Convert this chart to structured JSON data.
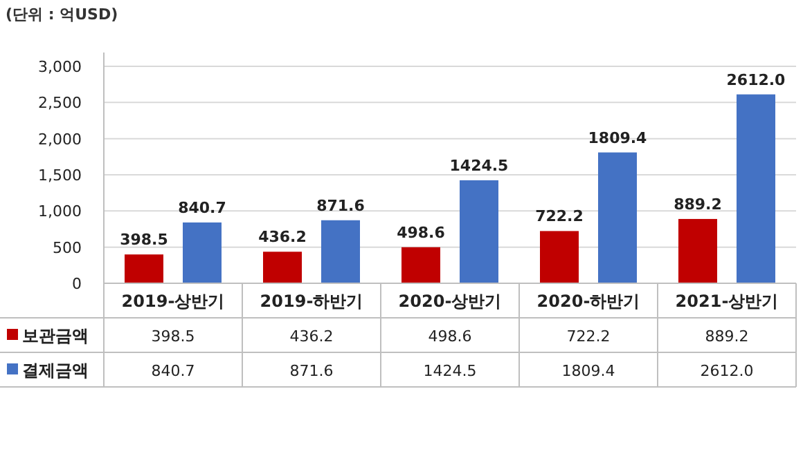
{
  "chart_data": {
    "type": "bar",
    "ylabel": "(단위 : 억USD)",
    "categories": [
      "2019-상반기",
      "2019-하반기",
      "2020-상반기",
      "2020-하반기",
      "2021-상반기"
    ],
    "series": [
      {
        "name": "보관금액",
        "color": "#c00000",
        "values": [
          398.5,
          436.2,
          498.6,
          722.2,
          889.2
        ],
        "value_labels": [
          "398.5",
          "436.2",
          "498.6",
          "722.2",
          "889.2"
        ]
      },
      {
        "name": "결제금액",
        "color": "#4472c4",
        "values": [
          840.7,
          871.6,
          1424.5,
          1809.4,
          2612.0
        ],
        "value_labels": [
          "840.7",
          "871.6",
          "1424.5",
          "1809.4",
          "2612.0"
        ]
      }
    ],
    "ylim": [
      0,
      3000
    ],
    "yticks": [
      0,
      500,
      {
        "value": 1000,
        "label": "1,000"
      },
      {
        "value": 1500,
        "label": "1,500"
      },
      {
        "value": 2000,
        "label": "2,000"
      },
      {
        "value": 2500,
        "label": "2,500"
      },
      {
        "value": 3000,
        "label": "3,000"
      }
    ],
    "grid": "y",
    "legend": "bottom"
  }
}
